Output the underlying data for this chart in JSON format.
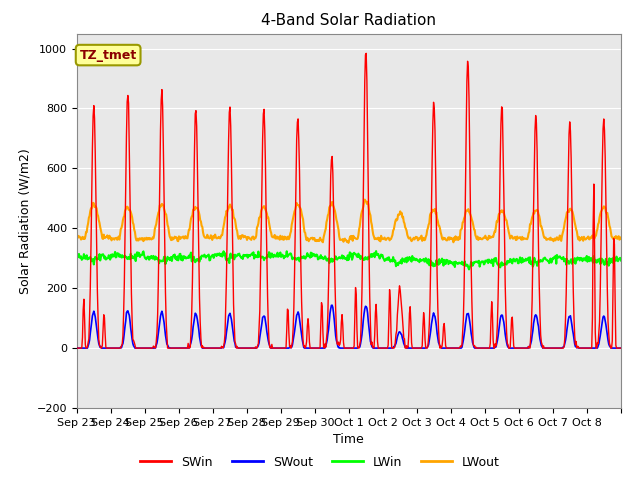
{
  "title": "4-Band Solar Radiation",
  "ylabel": "Solar Radiation (W/m2)",
  "xlabel": "Time",
  "ylim": [
    -200,
    1050
  ],
  "yticks": [
    -200,
    0,
    200,
    400,
    600,
    800,
    1000
  ],
  "annotation_label": "TZ_tmet",
  "annotation_box_color": "#FFFF99",
  "annotation_text_color": "#8B0000",
  "annotation_border_color": "#999900",
  "background_color": "#E8E8E8",
  "figure_bg": "#FFFFFF",
  "colors": {
    "SWin": "#FF0000",
    "SWout": "#0000FF",
    "LWin": "#00FF00",
    "LWout": "#FFA500"
  },
  "line_widths": {
    "SWin": 1.0,
    "SWout": 1.2,
    "LWin": 1.5,
    "LWout": 1.5
  },
  "x_tick_labels": [
    "Sep 23",
    "Sep 24",
    "Sep 25",
    "Sep 26",
    "Sep 27",
    "Sep 28",
    "Sep 29",
    "Sep 30",
    "Oct 1",
    "Oct 2",
    "Oct 3",
    "Oct 4",
    "Oct 5",
    "Oct 6",
    "Oct 7",
    "Oct 8"
  ],
  "num_days": 16,
  "SWin_peaks": [
    810,
    850,
    860,
    800,
    810,
    800,
    780,
    650,
    1000,
    200,
    825,
    960,
    810,
    775,
    760,
    780
  ],
  "SWin_secondary": [
    165,
    0,
    0,
    0,
    0,
    0,
    140,
    160,
    210,
    200,
    120,
    0,
    155,
    0,
    0,
    550
  ],
  "SWout_peaks": [
    120,
    125,
    120,
    115,
    115,
    110,
    120,
    145,
    140,
    55,
    115,
    115,
    112,
    112,
    108,
    105
  ],
  "LWin_base": [
    305,
    310,
    300,
    305,
    310,
    310,
    308,
    300,
    310,
    295,
    290,
    285,
    290,
    295,
    300,
    295
  ],
  "LWout_base": [
    370,
    365,
    365,
    370,
    370,
    368,
    365,
    360,
    365,
    365,
    365,
    365,
    368,
    365,
    365,
    368
  ],
  "LWout_peaks": [
    480,
    470,
    480,
    470,
    475,
    470,
    480,
    480,
    490,
    450,
    460,
    460,
    460,
    460,
    465,
    470
  ]
}
